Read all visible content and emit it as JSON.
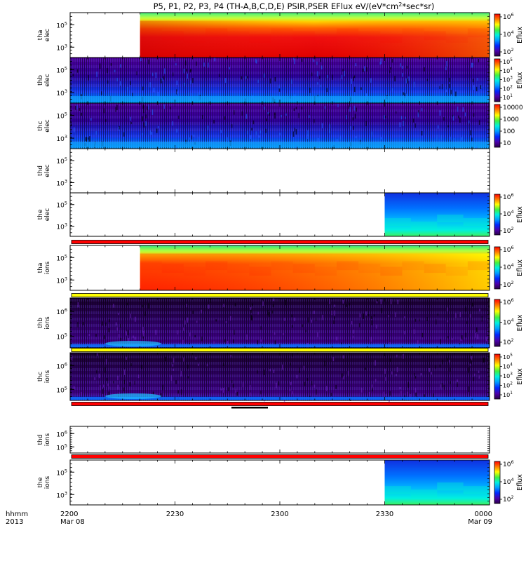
{
  "title": "P5, P1, P2, P3, P4 (TH-A,B,C,D,E) PSIR,PSER EFlux eV/(eV*cm^2*sec*sr)",
  "chart_data": {
    "type": "heatmap",
    "x_axis": {
      "ticks": [
        "2200",
        "2230",
        "2300",
        "2330",
        "0000"
      ],
      "tick_dates": [
        "Mar 08",
        "",
        "",
        "",
        "Mar 09"
      ],
      "unit_label": "hhmm",
      "year_label": "2013",
      "range": [
        "2013-03-08 22:00",
        "2013-03-09 00:00"
      ]
    },
    "panels": [
      {
        "name": "tha-elec",
        "ylabel": [
          "tha",
          "elec"
        ],
        "yticks": [
          "10^5",
          "10^3"
        ],
        "zlabel": "Eflux",
        "zticks": [
          "10^6",
          "10^4",
          "10^2"
        ],
        "data": "full-after-2220"
      },
      {
        "name": "thb-elec",
        "ylabel": [
          "thb",
          "elec"
        ],
        "yticks": [
          "10^5",
          "10^3"
        ],
        "zlabel": "Eflux",
        "zticks": [
          "10^5",
          "10^4",
          "10^3",
          "10^2",
          "10^1"
        ],
        "data": "noisy"
      },
      {
        "name": "thc-elec",
        "ylabel": [
          "thc",
          "elec"
        ],
        "yticks": [
          "10^5",
          "10^3"
        ],
        "zlabel": "",
        "zticks": [
          "10000",
          "1000",
          "100",
          "10"
        ],
        "data": "noisy"
      },
      {
        "name": "thd-elec",
        "ylabel": [
          "thd",
          "elec"
        ],
        "yticks": [
          "10^5",
          "10^3"
        ],
        "zlabel": "",
        "zticks": [],
        "data": "none"
      },
      {
        "name": "the-elec",
        "ylabel": [
          "the",
          "elec"
        ],
        "yticks": [
          "10^5",
          "10^3"
        ],
        "zlabel": "Eflux",
        "zticks": [
          "10^6",
          "10^4",
          "10^2"
        ],
        "data": "after-2330"
      },
      {
        "name": "tha-ions",
        "ylabel": [
          "tha",
          "ions"
        ],
        "yticks": [
          "10^5",
          "10^3"
        ],
        "zlabel": "Eflux",
        "zticks": [
          "10^6",
          "10^4",
          "10^2"
        ],
        "data": "full-after-2220"
      },
      {
        "name": "thb-ions",
        "ylabel": [
          "thb",
          "ions"
        ],
        "yticks": [
          "10^6",
          "10^5"
        ],
        "zlabel": "Eflux",
        "zticks": [
          "10^6",
          "10^4",
          "10^2"
        ],
        "data": "noisy"
      },
      {
        "name": "thc-ions",
        "ylabel": [
          "thc",
          "ions"
        ],
        "yticks": [
          "10^6",
          "10^5"
        ],
        "zlabel": "Eflux",
        "zticks": [
          "10^5",
          "10^4",
          "10^3",
          "10^2",
          "10^1"
        ],
        "data": "noisy"
      },
      {
        "name": "thd-ions",
        "ylabel": [
          "thd",
          "ions"
        ],
        "yticks": [
          "10^6",
          "10^5"
        ],
        "zlabel": "",
        "zticks": [],
        "data": "none"
      },
      {
        "name": "the-ions",
        "ylabel": [
          "the",
          "ions"
        ],
        "yticks": [
          "10^5",
          "10^3"
        ],
        "zlabel": "Eflux",
        "zticks": [
          "10^6",
          "10^4",
          "10^2"
        ],
        "data": "after-2330"
      }
    ],
    "mode_bars": [
      {
        "after_panel": "the-elec",
        "color": "#ff0000"
      },
      {
        "after_panel": "tha-ions",
        "color": "#ffff00"
      },
      {
        "after_panel": "thb-ions",
        "color": "#ffff00"
      },
      {
        "after_panel": "thc-ions",
        "color": "#ff0000"
      },
      {
        "after_panel": "thd-ions",
        "color": "#ff0000"
      }
    ]
  }
}
